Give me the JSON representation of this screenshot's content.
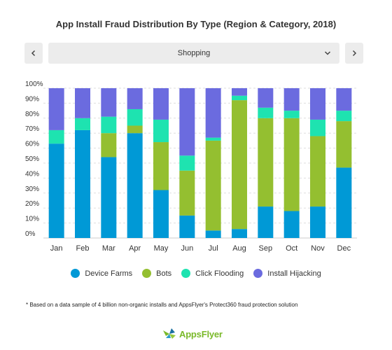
{
  "header": {
    "prev_icon": "chevron-left-icon",
    "next_icon": "chevron-right-icon",
    "filter": {
      "selected": "Shopping",
      "icon": "chevron-down-icon"
    }
  },
  "chart_data": {
    "type": "bar",
    "stacked": true,
    "title": "App Install Fraud Distribution By Type (Region & Category, 2018)",
    "xlabel": "",
    "ylabel": "",
    "ylim": [
      0,
      100
    ],
    "yticks": [
      "0%",
      "10%",
      "20%",
      "30%",
      "40%",
      "50%",
      "60%",
      "70%",
      "80%",
      "90%",
      "100%"
    ],
    "grid": true,
    "legend_position": "bottom",
    "categories": [
      "Jan",
      "Feb",
      "Mar",
      "Apr",
      "May",
      "Jun",
      "Jul",
      "Aug",
      "Sep",
      "Oct",
      "Nov",
      "Dec"
    ],
    "series": [
      {
        "name": "Device Farms",
        "color": "#0099d6",
        "values": [
          63,
          72,
          54,
          70,
          32,
          15,
          5,
          6,
          21,
          18,
          21,
          47
        ]
      },
      {
        "name": "Bots",
        "color": "#94bf30",
        "values": [
          0,
          0,
          16,
          5,
          32,
          30,
          60,
          86,
          59,
          62,
          47,
          31
        ]
      },
      {
        "name": "Click Flooding",
        "color": "#1ee3b0",
        "values": [
          9,
          8,
          11,
          11,
          15,
          10,
          2,
          3,
          7,
          5,
          11,
          7
        ]
      },
      {
        "name": "Install Hijacking",
        "color": "#6b6bdf",
        "values": [
          28,
          20,
          19,
          14,
          21,
          45,
          33,
          5,
          13,
          15,
          21,
          15
        ]
      }
    ]
  },
  "footnote": "* Based on a data sample of 4 billion non-organic installs and AppsFlyer's Protect360 fraud protection solution",
  "brand": {
    "name": "AppsFlyer",
    "icon": "appsflyer-logo-icon"
  }
}
